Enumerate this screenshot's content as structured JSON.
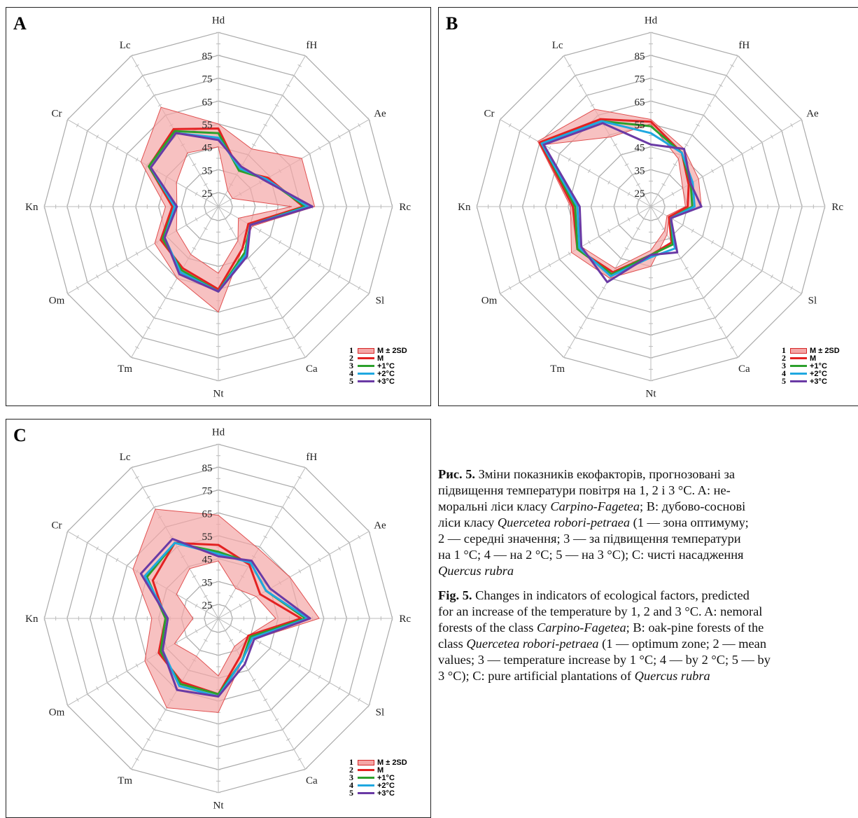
{
  "axes": [
    "Hd",
    "fH",
    "Ae",
    "Rc",
    "Sl",
    "Ca",
    "Nt",
    "Tm",
    "Om",
    "Kn",
    "Cr",
    "Lc"
  ],
  "ticks": [
    "25",
    "35",
    "45",
    "55",
    "65",
    "75",
    "85"
  ],
  "legend": [
    {
      "num": "1",
      "label": "M ± 2SD",
      "color": "#f4a6a6",
      "edge": "#d62728",
      "kind": "band"
    },
    {
      "num": "2",
      "label": "M",
      "color": "#e32222",
      "kind": "line"
    },
    {
      "num": "3",
      "label": "+1°C",
      "color": "#2ca02c",
      "kind": "line"
    },
    {
      "num": "4",
      "label": "+2°C",
      "color": "#1fa8e0",
      "kind": "line"
    },
    {
      "num": "5",
      "label": "+3°C",
      "color": "#6a3aa5",
      "kind": "line"
    }
  ],
  "chart_data": [
    {
      "panel": "A",
      "type": "radar",
      "rlim": [
        25,
        85
      ],
      "band_low": [
        45,
        27,
        26,
        51,
        29,
        36,
        48,
        43,
        40,
        37,
        40,
        46
      ],
      "band_high": [
        55,
        48,
        61,
        61,
        36,
        40,
        65,
        55,
        51,
        42,
        58,
        69
      ],
      "series": [
        {
          "label_ref": 1,
          "values": [
            53,
            37,
            44,
            56,
            34,
            40,
            55,
            50,
            48,
            39,
            54,
            58
          ]
        },
        {
          "label_ref": 2,
          "values": [
            51,
            37,
            43,
            57,
            35,
            42,
            56,
            51,
            47,
            38,
            54,
            57
          ]
        },
        {
          "label_ref": 3,
          "values": [
            49,
            38,
            43,
            58,
            35,
            43,
            56,
            52,
            46,
            38,
            53,
            56
          ]
        },
        {
          "label_ref": 4,
          "values": [
            48,
            39,
            42,
            60,
            35,
            44,
            56,
            53,
            46,
            37,
            53,
            56
          ]
        }
      ]
    },
    {
      "panel": "B",
      "type": "radar",
      "rlim": [
        25,
        85
      ],
      "band_low": [
        55,
        43,
        35,
        34,
        27,
        31,
        38,
        50,
        54,
        51,
        73,
        54
      ],
      "band_high": [
        57,
        48,
        43,
        41,
        28,
        33,
        45,
        55,
        59,
        54,
        76,
        68
      ],
      "series": [
        {
          "label_ref": 1,
          "values": [
            56,
            46,
            38,
            35,
            28,
            37,
            40,
            52,
            56,
            53,
            75,
            63
          ]
        },
        {
          "label_ref": 2,
          "values": [
            54,
            46,
            39,
            37,
            29,
            38,
            40,
            53,
            56,
            52,
            74,
            62
          ]
        },
        {
          "label_ref": 3,
          "values": [
            51,
            46,
            40,
            38,
            29,
            40,
            41,
            54,
            55,
            51,
            74,
            62
          ]
        },
        {
          "label_ref": 4,
          "values": [
            46,
            48,
            39,
            41,
            29,
            42,
            40,
            57,
            54,
            50,
            73,
            61
          ]
        }
      ]
    },
    {
      "panel": "C",
      "type": "radar",
      "rlim": [
        25,
        85
      ],
      "band_low": [
        44,
        34,
        38,
        44,
        34,
        33,
        44,
        38,
        41,
        30,
        40,
        44
      ],
      "band_high": [
        64,
        54,
        55,
        63,
        37,
        40,
        60,
        64,
        56,
        48,
        62,
        74
      ],
      "series": [
        {
          "label_ref": 1,
          "values": [
            51,
            46,
            40,
            55,
            34,
            38,
            52,
            51,
            49,
            42,
            52,
            57
          ]
        },
        {
          "label_ref": 2,
          "values": [
            48,
            47,
            43,
            57,
            35,
            40,
            52,
            52,
            48,
            42,
            55,
            57
          ]
        },
        {
          "label_ref": 3,
          "values": [
            47,
            47,
            43,
            58,
            36,
            40,
            53,
            53,
            47,
            41,
            56,
            57
          ]
        },
        {
          "label_ref": 4,
          "values": [
            46,
            48,
            45,
            59,
            37,
            42,
            53,
            55,
            47,
            41,
            58,
            59
          ]
        }
      ]
    }
  ],
  "caption_uk": [
    "Рис. 5.",
    " Зміни показників екофакторів, прогнозовані за",
    "підвищення температури повітря на 1, 2 і 3 °C. A: не-",
    "моральні ліси класу ",
    "Carpino-Fagetea",
    "; B: дубово-соснові",
    "ліси класу ",
    "Quercetea robori-petraea",
    " (1 — зона оптимуму;",
    "2 — середні значення; 3 — за підвищення температури",
    "на 1 °C; 4 — на 2 °C; 5 — на 3 °C); C: чисті насадження",
    "Quercus rubra"
  ],
  "caption_en": [
    "Fig. 5.",
    " Changes in indicators of ecological factors, predicted",
    "for an increase of the temperature by 1, 2 and 3 °C. A: nemoral",
    "forests of the class ",
    "Carpino-Fagetea",
    "; B: oak-pine forests of the",
    "class ",
    "Quercetea robori-petraea",
    " (1 — optimum zone; 2 — mean",
    "values; 3 — temperature increase by 1 °C; 4 — by 2 °C; 5 — by",
    "3 °C); C: pure artificial plantations of ",
    "Quercus rubra"
  ]
}
